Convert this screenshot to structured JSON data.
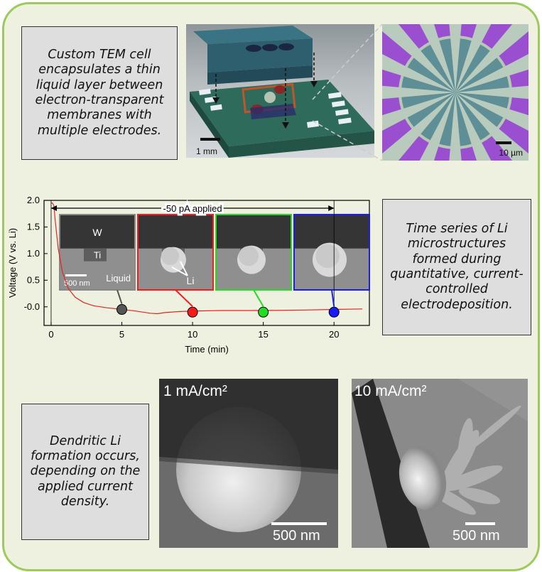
{
  "callouts": {
    "top_left": "Custom TEM cell encapsulates a thin liquid layer between electron-transparent membranes with multiple electrodes.",
    "middle_right": "Time series of Li microstructures formed during quantitative, current-controlled electrodeposition.",
    "bottom_left": "Dendritic Li formation occurs, depending on the applied current density."
  },
  "images": {
    "cell_scale": "1 mm",
    "electrode_scale": "10 µm",
    "current_1": "1 mA/cm²",
    "current_10": "10 mA/cm²",
    "scale_500_a": "500 nm",
    "scale_500_b": "500 nm"
  },
  "chart_data": {
    "type": "line",
    "xlabel": "Time (min)",
    "ylabel": "Voltage (V vs. Li)",
    "xlim": [
      -0.5,
      22.5
    ],
    "ylim": [
      -0.35,
      2.0
    ],
    "x_ticks": [
      "0",
      "5",
      "10",
      "15",
      "20"
    ],
    "y_ticks": [
      "-0.0",
      "0.5",
      "1.0",
      "1.5",
      "2.0"
    ],
    "annotation": "-50 pA applied",
    "annotation_range": [
      0,
      20
    ],
    "series": [
      {
        "color": "#e8231f",
        "x": [
          0,
          0.1,
          0.2,
          0.3,
          0.5,
          0.8,
          1.2,
          1.7,
          2.3,
          3,
          4,
          5,
          6,
          7,
          7.5,
          8,
          9,
          10,
          12,
          15,
          18,
          20,
          22
        ],
        "y": [
          1.95,
          1.95,
          1.9,
          1.6,
          1.1,
          0.65,
          0.35,
          0.18,
          0.08,
          0.02,
          -0.02,
          -0.05,
          -0.08,
          -0.12,
          -0.13,
          -0.11,
          -0.09,
          -0.08,
          -0.07,
          -0.07,
          -0.06,
          -0.05,
          -0.04
        ]
      }
    ],
    "markers": [
      {
        "x": 5,
        "y": -0.05,
        "color": "#555555"
      },
      {
        "x": 10,
        "y": -0.1,
        "color": "#ff1a1a"
      },
      {
        "x": 15,
        "y": -0.1,
        "color": "#22dd22"
      },
      {
        "x": 20,
        "y": -0.1,
        "color": "#1a1aff"
      }
    ],
    "insets": {
      "labels": [
        "W",
        "Ti",
        "Liquid",
        "Li"
      ],
      "scale": "500 nm",
      "border_colors": [
        "#888888",
        "#ff1a1a",
        "#22dd22",
        "#1a1aff"
      ]
    }
  }
}
